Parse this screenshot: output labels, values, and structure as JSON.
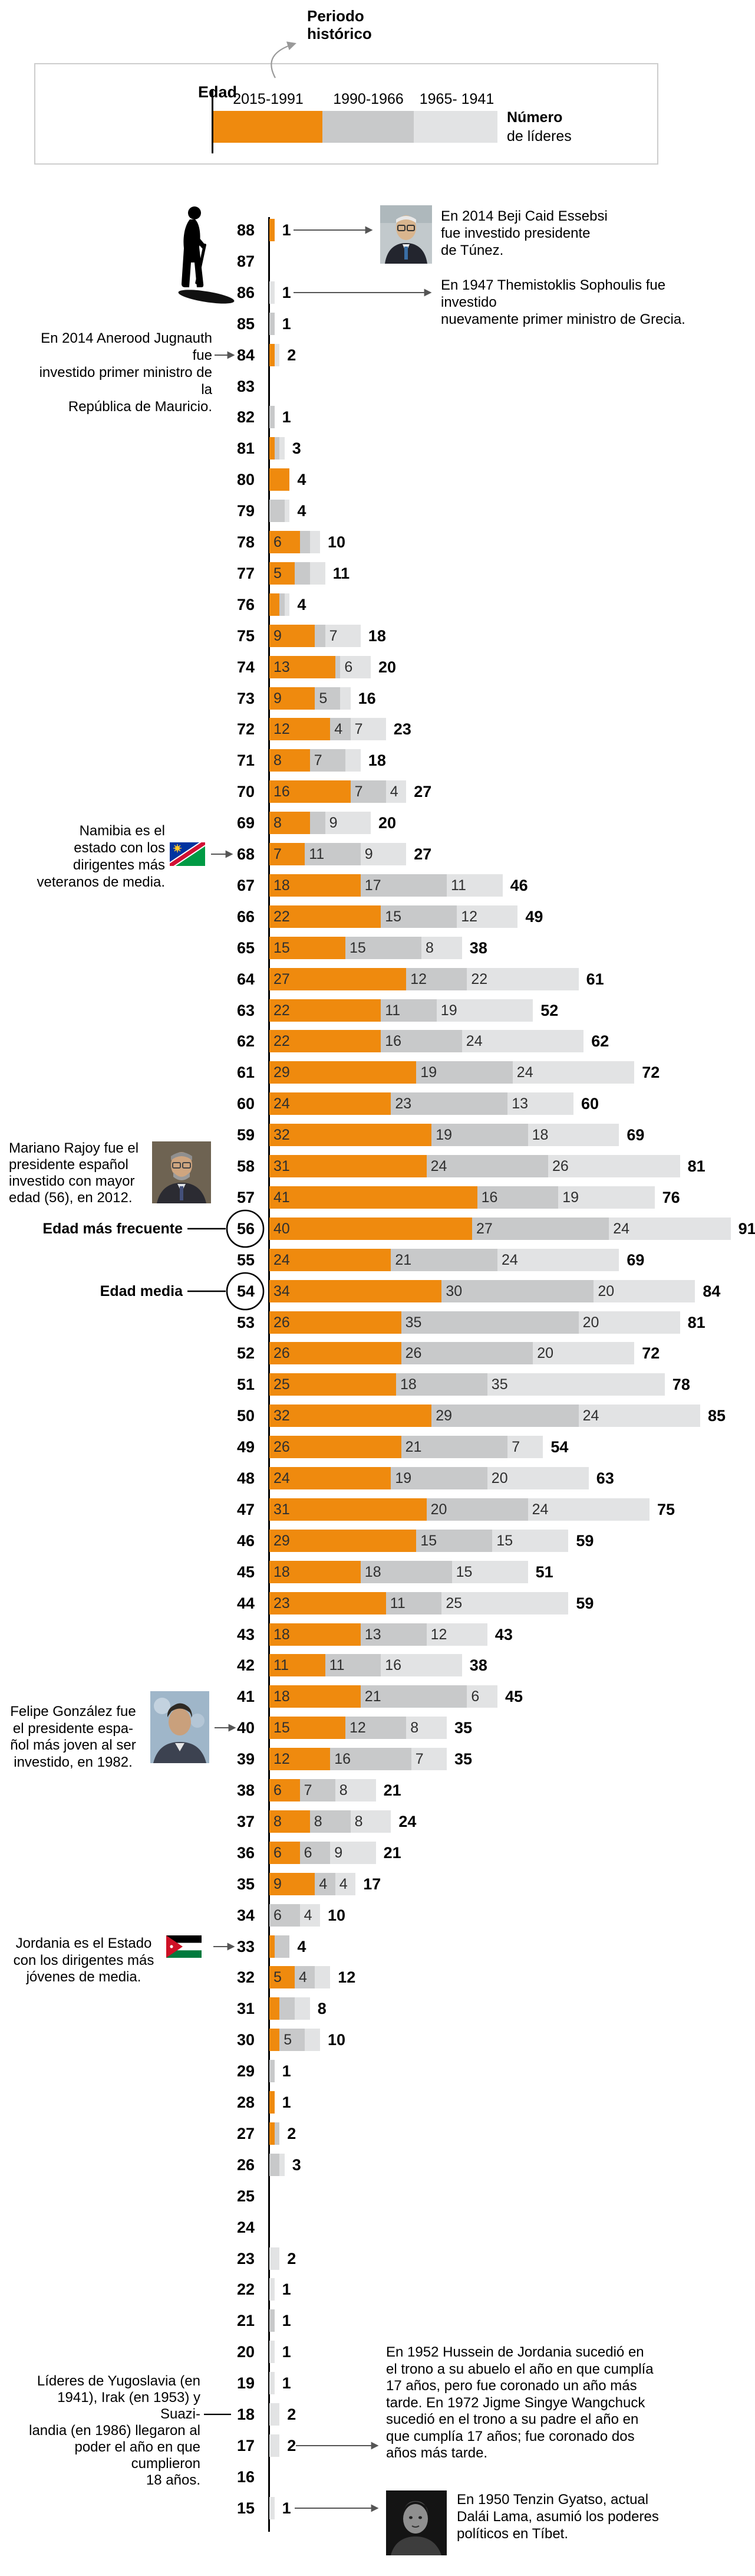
{
  "legend": {
    "periodo_historico_lines": [
      "Periodo",
      "histórico"
    ],
    "edad_label": "Edad",
    "numero_label": "Número",
    "de_lideres_label": "de líderes",
    "periods": [
      "2015-1991",
      "1990-1966",
      "1965- 1941"
    ]
  },
  "colors": {
    "period_2015_1991": "#EF8A0E",
    "period_1990_1966": "#C8C9CA",
    "period_1965_1941": "#E2E3E4",
    "axis": "#000000",
    "arrow": "#555555"
  },
  "chart_data": {
    "type": "bar",
    "orientation": "horizontal",
    "stacked": true,
    "title": "",
    "ylabel": "Edad",
    "xlabel": "Número de líderes",
    "legend_position": "top",
    "series": [
      "2015-1991",
      "1990-1966",
      "1965- 1941"
    ],
    "age_axis_range": [
      15,
      88
    ],
    "rows": [
      {
        "age": 88,
        "values": [
          1,
          0,
          0
        ],
        "total": 1
      },
      {
        "age": 87,
        "values": [
          0,
          0,
          0
        ],
        "total": null
      },
      {
        "age": 86,
        "values": [
          0,
          0,
          1
        ],
        "total": 1
      },
      {
        "age": 85,
        "values": [
          0,
          1,
          0
        ],
        "total": 1
      },
      {
        "age": 84,
        "values": [
          1,
          0,
          1
        ],
        "total": 2
      },
      {
        "age": 83,
        "values": [
          0,
          0,
          0
        ],
        "total": null
      },
      {
        "age": 82,
        "values": [
          0,
          1,
          0
        ],
        "total": 1
      },
      {
        "age": 81,
        "values": [
          1,
          1,
          1
        ],
        "total": 3
      },
      {
        "age": 80,
        "values": [
          4,
          0,
          0
        ],
        "total": 4
      },
      {
        "age": 79,
        "values": [
          0,
          3,
          1
        ],
        "total": 4
      },
      {
        "age": 78,
        "values": [
          6,
          2,
          2
        ],
        "total": 10
      },
      {
        "age": 77,
        "values": [
          5,
          3,
          3
        ],
        "total": 11
      },
      {
        "age": 76,
        "values": [
          2,
          1,
          1
        ],
        "total": 4
      },
      {
        "age": 75,
        "values": [
          9,
          2,
          7
        ],
        "total": 18
      },
      {
        "age": 74,
        "values": [
          13,
          1,
          6
        ],
        "total": 20
      },
      {
        "age": 73,
        "values": [
          9,
          5,
          2
        ],
        "total": 16
      },
      {
        "age": 72,
        "values": [
          12,
          4,
          7
        ],
        "total": 23
      },
      {
        "age": 71,
        "values": [
          8,
          7,
          3
        ],
        "total": 18
      },
      {
        "age": 70,
        "values": [
          16,
          7,
          4
        ],
        "total": 27
      },
      {
        "age": 69,
        "values": [
          8,
          3,
          9
        ],
        "total": 20
      },
      {
        "age": 68,
        "values": [
          7,
          11,
          9
        ],
        "total": 27
      },
      {
        "age": 67,
        "values": [
          18,
          17,
          11
        ],
        "total": 46
      },
      {
        "age": 66,
        "values": [
          22,
          15,
          12
        ],
        "total": 49
      },
      {
        "age": 65,
        "values": [
          15,
          15,
          8
        ],
        "total": 38
      },
      {
        "age": 64,
        "values": [
          27,
          12,
          22
        ],
        "total": 61
      },
      {
        "age": 63,
        "values": [
          22,
          11,
          19
        ],
        "total": 52
      },
      {
        "age": 62,
        "values": [
          22,
          16,
          24
        ],
        "total": 62
      },
      {
        "age": 61,
        "values": [
          29,
          19,
          24
        ],
        "total": 72
      },
      {
        "age": 60,
        "values": [
          24,
          23,
          13
        ],
        "total": 60
      },
      {
        "age": 59,
        "values": [
          32,
          19,
          18
        ],
        "total": 69
      },
      {
        "age": 58,
        "values": [
          31,
          24,
          26
        ],
        "total": 81
      },
      {
        "age": 57,
        "values": [
          41,
          16,
          19
        ],
        "total": 76
      },
      {
        "age": 56,
        "values": [
          40,
          27,
          24
        ],
        "total": 91
      },
      {
        "age": 55,
        "values": [
          24,
          21,
          24
        ],
        "total": 69
      },
      {
        "age": 54,
        "values": [
          34,
          30,
          20
        ],
        "total": 84
      },
      {
        "age": 53,
        "values": [
          26,
          35,
          20
        ],
        "total": 81
      },
      {
        "age": 52,
        "values": [
          26,
          26,
          20
        ],
        "total": 72
      },
      {
        "age": 51,
        "values": [
          25,
          18,
          35
        ],
        "total": 78
      },
      {
        "age": 50,
        "values": [
          32,
          29,
          24
        ],
        "total": 85
      },
      {
        "age": 49,
        "values": [
          26,
          21,
          7
        ],
        "total": 54
      },
      {
        "age": 48,
        "values": [
          24,
          19,
          20
        ],
        "total": 63
      },
      {
        "age": 47,
        "values": [
          31,
          20,
          24
        ],
        "total": 75
      },
      {
        "age": 46,
        "values": [
          29,
          15,
          15
        ],
        "total": 59
      },
      {
        "age": 45,
        "values": [
          18,
          18,
          15
        ],
        "total": 51
      },
      {
        "age": 44,
        "values": [
          23,
          11,
          25
        ],
        "total": 59
      },
      {
        "age": 43,
        "values": [
          18,
          13,
          12
        ],
        "total": 43
      },
      {
        "age": 42,
        "values": [
          11,
          11,
          16
        ],
        "total": 38
      },
      {
        "age": 41,
        "values": [
          18,
          21,
          6
        ],
        "total": 45
      },
      {
        "age": 40,
        "values": [
          15,
          12,
          8
        ],
        "total": 35
      },
      {
        "age": 39,
        "values": [
          12,
          16,
          7
        ],
        "total": 35
      },
      {
        "age": 38,
        "values": [
          6,
          7,
          8
        ],
        "total": 21
      },
      {
        "age": 37,
        "values": [
          8,
          8,
          8
        ],
        "total": 24
      },
      {
        "age": 36,
        "values": [
          6,
          6,
          9
        ],
        "total": 21
      },
      {
        "age": 35,
        "values": [
          9,
          4,
          4
        ],
        "total": 17
      },
      {
        "age": 34,
        "values": [
          0,
          6,
          4
        ],
        "total": 10
      },
      {
        "age": 33,
        "values": [
          1,
          3,
          0
        ],
        "total": 4
      },
      {
        "age": 32,
        "values": [
          5,
          4,
          3
        ],
        "total": 12
      },
      {
        "age": 31,
        "values": [
          2,
          3,
          3
        ],
        "total": 8
      },
      {
        "age": 30,
        "values": [
          2,
          5,
          3
        ],
        "total": 10
      },
      {
        "age": 29,
        "values": [
          0,
          1,
          0
        ],
        "total": 1
      },
      {
        "age": 28,
        "values": [
          1,
          0,
          0
        ],
        "total": 1
      },
      {
        "age": 27,
        "values": [
          1,
          1,
          0
        ],
        "total": 2
      },
      {
        "age": 26,
        "values": [
          0,
          2,
          1
        ],
        "total": 3
      },
      {
        "age": 25,
        "values": [
          0,
          0,
          0
        ],
        "total": null
      },
      {
        "age": 24,
        "values": [
          0,
          0,
          0
        ],
        "total": null
      },
      {
        "age": 23,
        "values": [
          0,
          0,
          2
        ],
        "total": 2
      },
      {
        "age": 22,
        "values": [
          0,
          0,
          1
        ],
        "total": 1
      },
      {
        "age": 21,
        "values": [
          0,
          1,
          0
        ],
        "total": 1
      },
      {
        "age": 20,
        "values": [
          0,
          0,
          1
        ],
        "total": 1
      },
      {
        "age": 19,
        "values": [
          0,
          0,
          1
        ],
        "total": 1
      },
      {
        "age": 18,
        "values": [
          0,
          0,
          2
        ],
        "total": 2
      },
      {
        "age": 17,
        "values": [
          0,
          0,
          2
        ],
        "total": 2
      },
      {
        "age": 16,
        "values": [
          0,
          0,
          0
        ],
        "total": null
      },
      {
        "age": 15,
        "values": [
          0,
          0,
          1
        ],
        "total": 1
      }
    ]
  },
  "annotations": {
    "beji": {
      "lines": [
        "En 2014 Beji Caid Essebsi",
        "fue investido presidente",
        "de Túnez."
      ]
    },
    "sophoulis": {
      "lines": [
        "En 1947 Themistoklis Sophoulis fue investido",
        "nuevamente primer ministro de Grecia."
      ]
    },
    "jugnauth": {
      "lines": [
        "En 2014 Anerood Jugnauth fue",
        "investido primer ministro de la",
        "República de Mauricio."
      ]
    },
    "namibia": {
      "lines": [
        "Namibia es el",
        "estado con los",
        "dirigentes más",
        "veteranos de media."
      ]
    },
    "rajoy": {
      "lines": [
        "Mariano Rajoy fue el",
        "presidente español",
        "investido con mayor",
        "edad (56), en 2012."
      ]
    },
    "edad_mas_frecuente": {
      "lines": [
        "Edad más frecuente"
      ],
      "bold": true
    },
    "edad_media": {
      "lines": [
        "Edad media"
      ],
      "bold": true
    },
    "felipe": {
      "lines": [
        "Felipe González fue",
        "el presidente espa-",
        "ñol más joven al ser",
        "investido, en 1982."
      ]
    },
    "jordania": {
      "lines": [
        "Jordania es el Estado",
        "con los dirigentes más",
        "jóvenes de media."
      ]
    },
    "yugoslavia": {
      "lines": [
        "Líderes de Yugoslavia (en",
        "1941), Irak (en 1953) y Suazi-",
        "landia (en 1986) llegaron al",
        "poder el año en que cumplieron",
        "18 años."
      ]
    },
    "hussein": {
      "lines": [
        "En 1952 Hussein de Jordania sucedió en",
        "el trono a su abuelo el año en que cumplía",
        "17 años, pero fue coronado un año más",
        "tarde. En 1972 Jigme Singye Wangchuck",
        "sucedió en el trono a su padre el año en",
        "que cumplía 17 años; fue coronado dos",
        "años más tarde."
      ]
    },
    "dalai": {
      "lines": [
        "En 1950 Tenzin Gyatso, actual",
        "Dalái Lama, asumió los poderes",
        "políticos en Tíbet."
      ]
    }
  },
  "icons": {
    "elderly_person_icon": "silueta de persona mayor con bastón",
    "namibia_flag": "bandera de Namibia",
    "jordan_flag": "bandera de Jordania",
    "photo_beji": "foto Beji Caid Essebsi",
    "photo_rajoy": "foto Mariano Rajoy",
    "photo_felipe": "foto Felipe González",
    "photo_dalai": "foto Dalái Lama joven"
  }
}
